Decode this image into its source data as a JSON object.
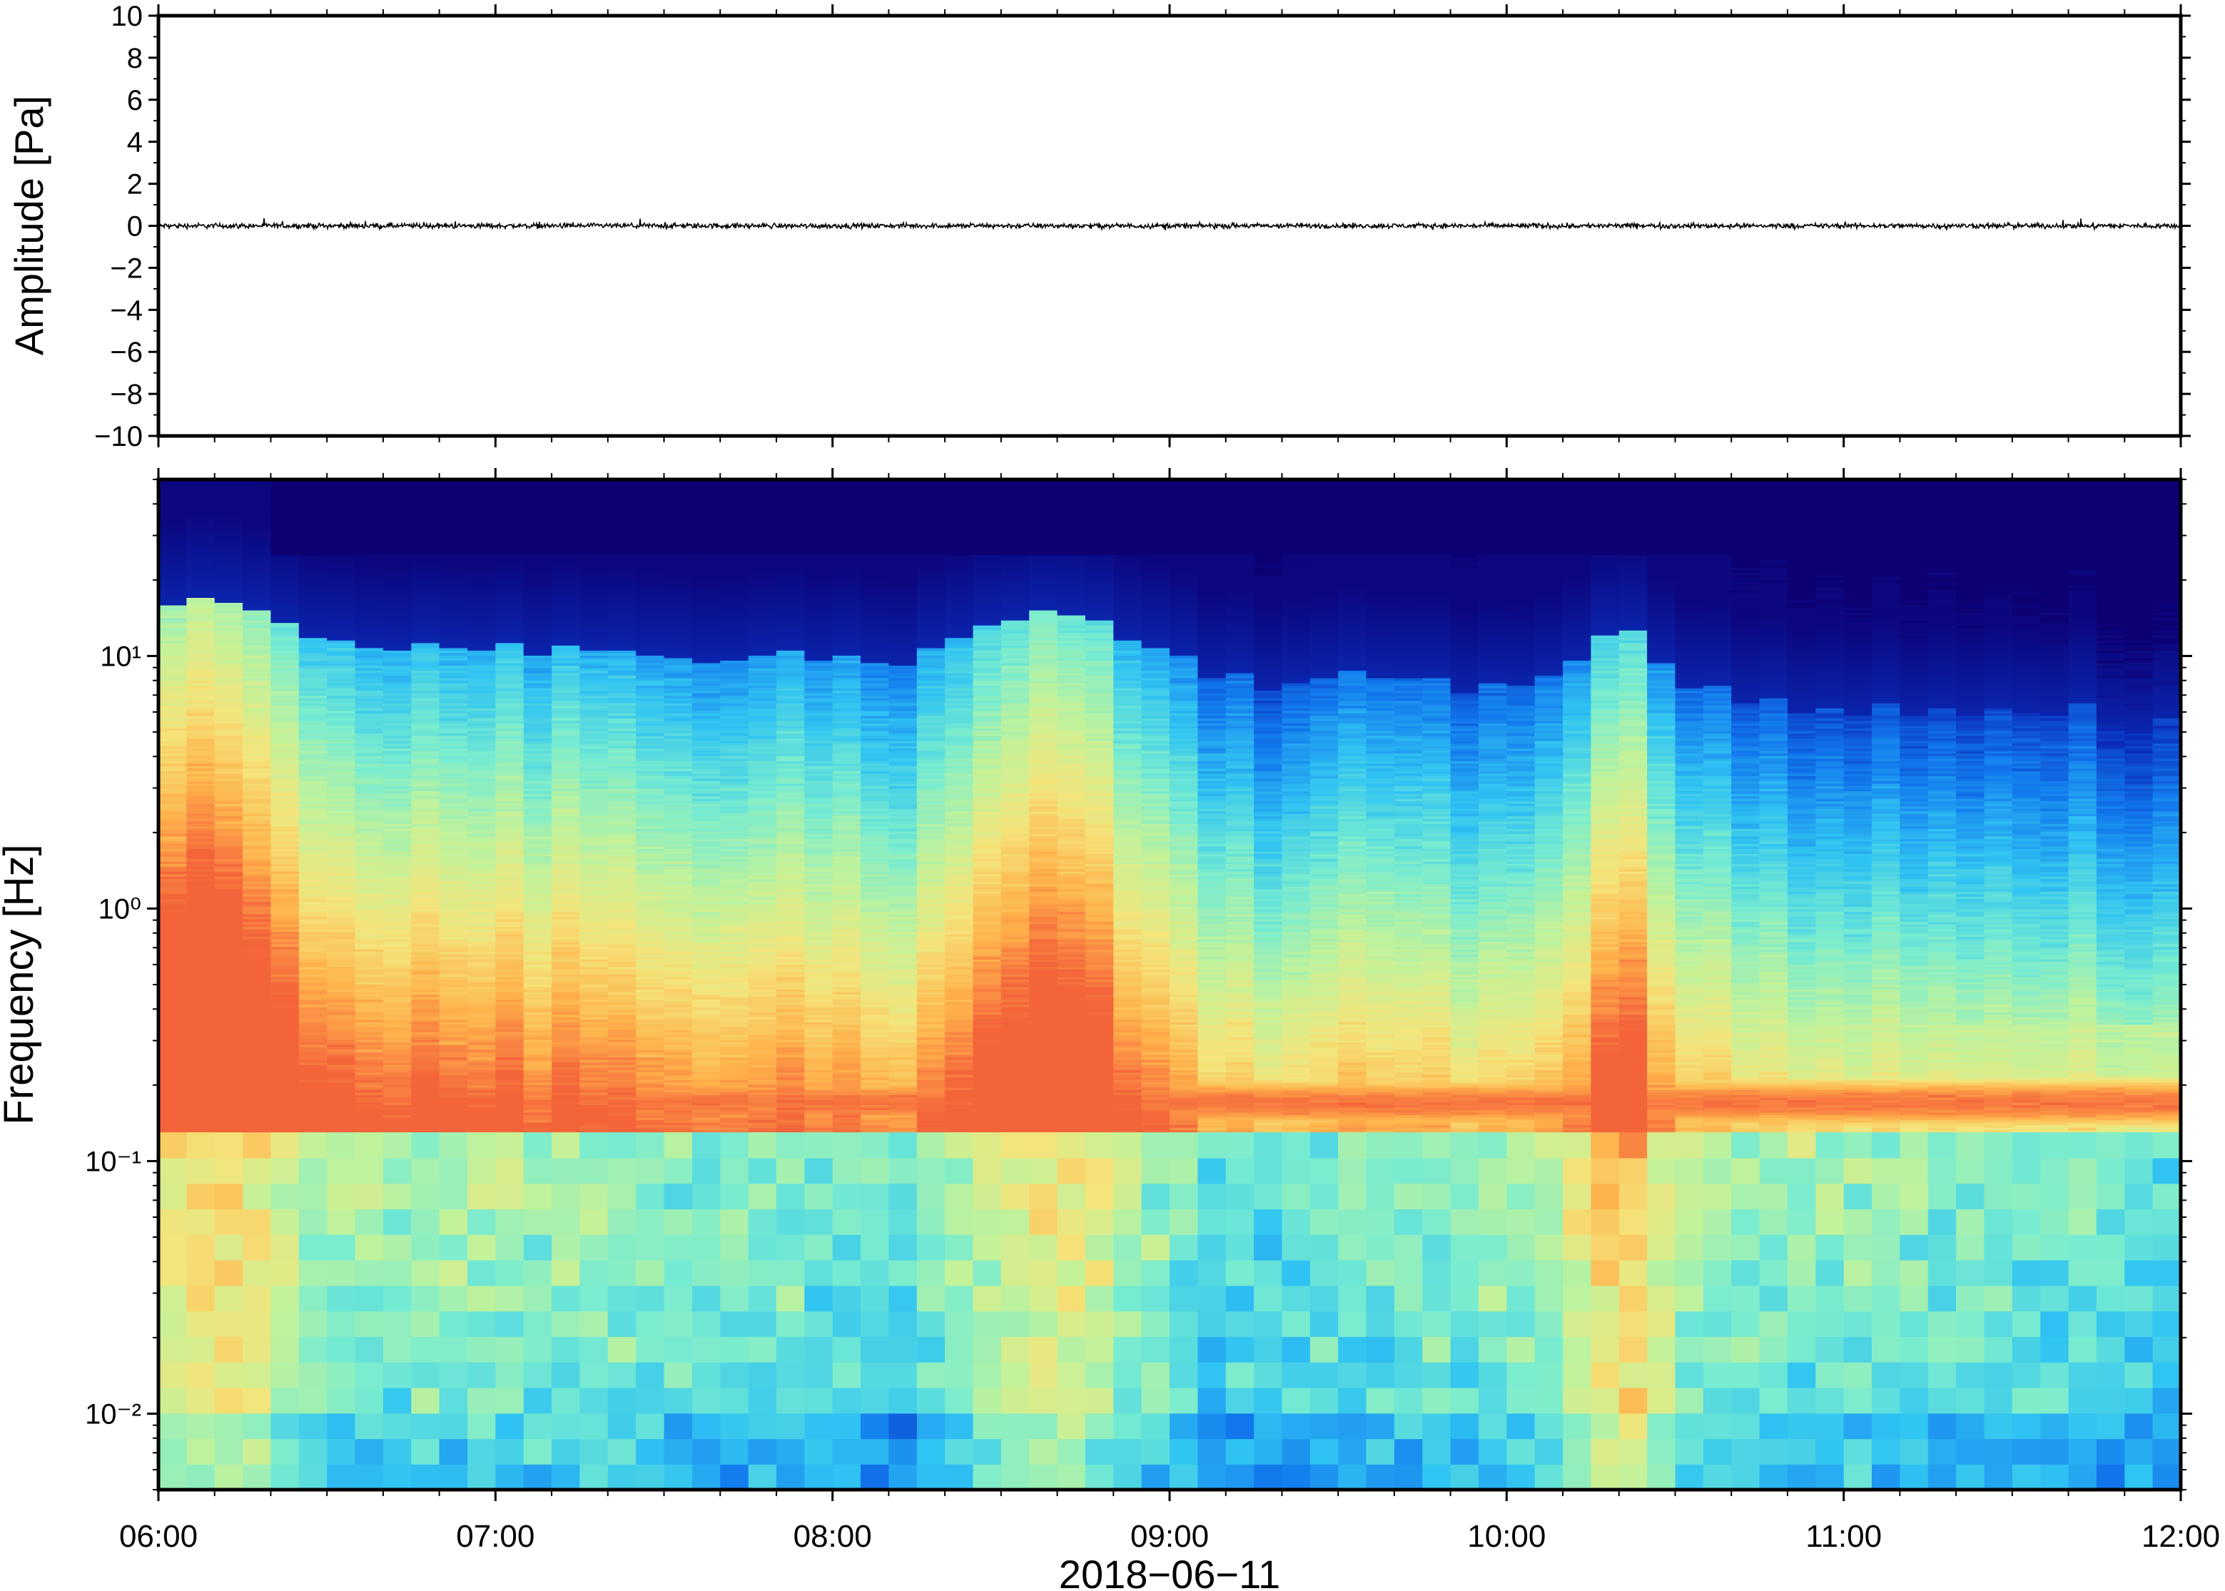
{
  "chart_data": [
    {
      "type": "line",
      "ylabel": "Amplitude [Pa]",
      "ylim": [
        -10,
        10
      ],
      "yticks": [
        10,
        8,
        6,
        4,
        2,
        0,
        -2,
        -4,
        -6,
        -8,
        -10
      ],
      "ytick_labels": [
        "10",
        "8",
        "6",
        "4",
        "2",
        "0",
        "−2",
        "−4",
        "−6",
        "−8",
        "−10"
      ],
      "xlim": [
        "2018-06-11T06:00",
        "2018-06-11T12:00"
      ],
      "series": [
        {
          "description": "pressure waveform, noise around 0 Pa",
          "x": [
            "06:00",
            "06:30",
            "07:00",
            "07:30",
            "08:00",
            "08:30",
            "09:00",
            "09:30",
            "10:00",
            "10:30",
            "11:00",
            "11:30",
            "12:00"
          ],
          "y": [
            0,
            0,
            0,
            0,
            0,
            0,
            0,
            0,
            0,
            0,
            0,
            0,
            0
          ],
          "approx_peak_amplitude": 0.4,
          "color": "#000000"
        }
      ],
      "grid": false
    },
    {
      "type": "heatmap",
      "ylabel": "Frequency [Hz]",
      "yscale": "log",
      "ylim": [
        0.005,
        50
      ],
      "yticks": [
        0.01,
        0.1,
        1,
        10
      ],
      "ytick_labels": [
        "10⁻²",
        "10⁻¹",
        "10⁰",
        "10¹"
      ],
      "xlim": [
        "2018-06-11T06:00",
        "2018-06-11T12:00"
      ],
      "colormap": "jet",
      "colors": [
        "#0c0073",
        "#0a2dbb",
        "#1279ee",
        "#30c4f2",
        "#78ecd0",
        "#c2f29a",
        "#f4e47a",
        "#ffb24c",
        "#f4633a"
      ],
      "features": {
        "microseism_band_hz": [
          0.14,
          0.22
        ],
        "microseism_peak_hz": 0.17,
        "high_frequency_floor_hz": 10,
        "energetic_times": [
          "06:00-06:20",
          "08:25-08:55",
          "10:15-10:25"
        ]
      },
      "grid": false
    }
  ],
  "shared_x": {
    "ticks": [
      "06:00",
      "07:00",
      "08:00",
      "09:00",
      "10:00",
      "11:00",
      "12:00"
    ],
    "xlabel": "2018−06−11"
  }
}
